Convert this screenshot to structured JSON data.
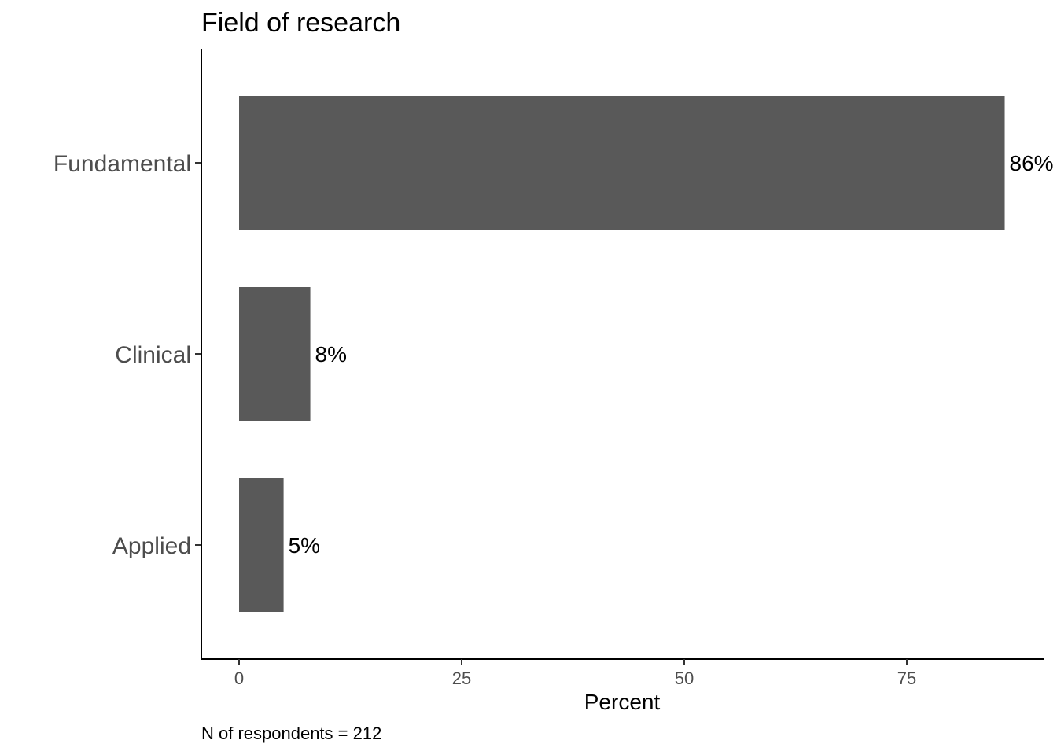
{
  "chart_data": {
    "type": "bar",
    "orientation": "horizontal",
    "title": "Field of research",
    "categories": [
      "Fundamental",
      "Clinical",
      "Applied"
    ],
    "values": [
      86,
      8,
      5
    ],
    "data_labels": [
      "86%",
      "8%",
      "5%"
    ],
    "xlabel": "Percent",
    "ylabel": "",
    "xlim": [
      0,
      90
    ],
    "x_ticks": [
      0,
      25,
      50,
      75
    ],
    "x_tick_labels": [
      "0",
      "25",
      "50",
      "75"
    ],
    "caption": "N of respondents = 212",
    "bar_color": "#595959",
    "grid": false,
    "legend": "none"
  }
}
